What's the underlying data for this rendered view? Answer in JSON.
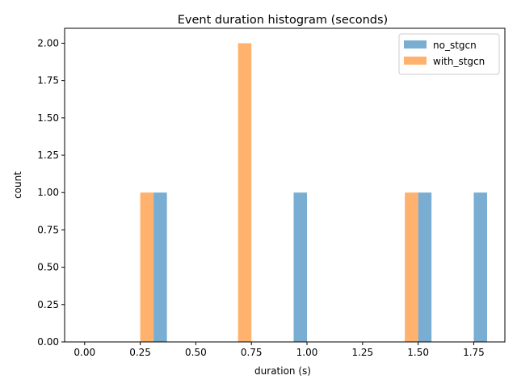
{
  "chart_data": {
    "type": "bar",
    "title": "Event duration histogram (seconds)",
    "xlabel": "duration (s)",
    "ylabel": "count",
    "xlim": [
      -0.09,
      1.89
    ],
    "ylim": [
      0,
      2.1
    ],
    "bin_width": 0.06,
    "xticks": [
      "0.00",
      "0.25",
      "0.50",
      "0.75",
      "1.00",
      "1.25",
      "1.50",
      "1.75"
    ],
    "yticks": [
      "0.00",
      "0.25",
      "0.50",
      "0.75",
      "1.00",
      "1.25",
      "1.50",
      "1.75",
      "2.00"
    ],
    "legend_position": "top-right",
    "grid": false,
    "series": [
      {
        "name": "no_stgcn",
        "color": "#1f77b4",
        "bins": [
          {
            "x": 0.34,
            "value": 1
          },
          {
            "x": 0.97,
            "value": 1
          },
          {
            "x": 1.53,
            "value": 1
          },
          {
            "x": 1.78,
            "value": 1
          }
        ]
      },
      {
        "name": "with_stgcn",
        "color": "#ff7f0e",
        "bins": [
          {
            "x": 0.28,
            "value": 1
          },
          {
            "x": 0.72,
            "value": 2
          },
          {
            "x": 1.47,
            "value": 1
          }
        ]
      }
    ]
  }
}
